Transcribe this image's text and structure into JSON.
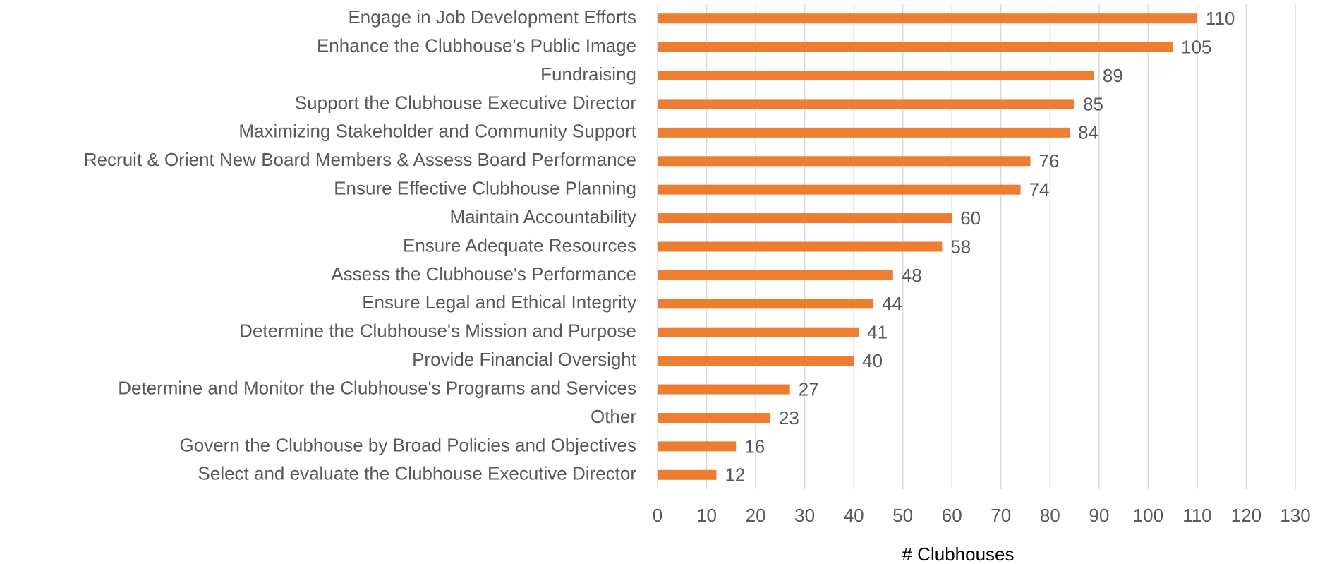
{
  "chart_data": {
    "type": "barh",
    "categories": [
      "Engage in Job Development Efforts",
      "Enhance the Clubhouse's Public Image",
      "Fundraising",
      "Support the Clubhouse Executive Director",
      "Maximizing Stakeholder and Community Support",
      "Recruit & Orient New Board Members & Assess Board Performance",
      "Ensure Effective Clubhouse Planning",
      "Maintain Accountability",
      "Ensure Adequate Resources",
      "Assess the Clubhouse's Performance",
      "Ensure Legal and Ethical Integrity",
      "Determine the Clubhouse's Mission and Purpose",
      "Provide Financial Oversight",
      "Determine and Monitor the Clubhouse's Programs and Services",
      "Other",
      "Govern the Clubhouse by Broad Policies and Objectives",
      "Select and evaluate the Clubhouse Executive Director"
    ],
    "values": [
      110,
      105,
      89,
      85,
      84,
      76,
      74,
      60,
      58,
      48,
      44,
      41,
      40,
      27,
      23,
      16,
      12
    ],
    "color": "#ed7d31",
    "xlabel": "# Clubhouses",
    "xlim": [
      0,
      130
    ],
    "xticks": [
      0,
      10,
      20,
      30,
      40,
      50,
      60,
      70,
      80,
      90,
      100,
      110,
      120,
      130
    ],
    "grid": true
  }
}
